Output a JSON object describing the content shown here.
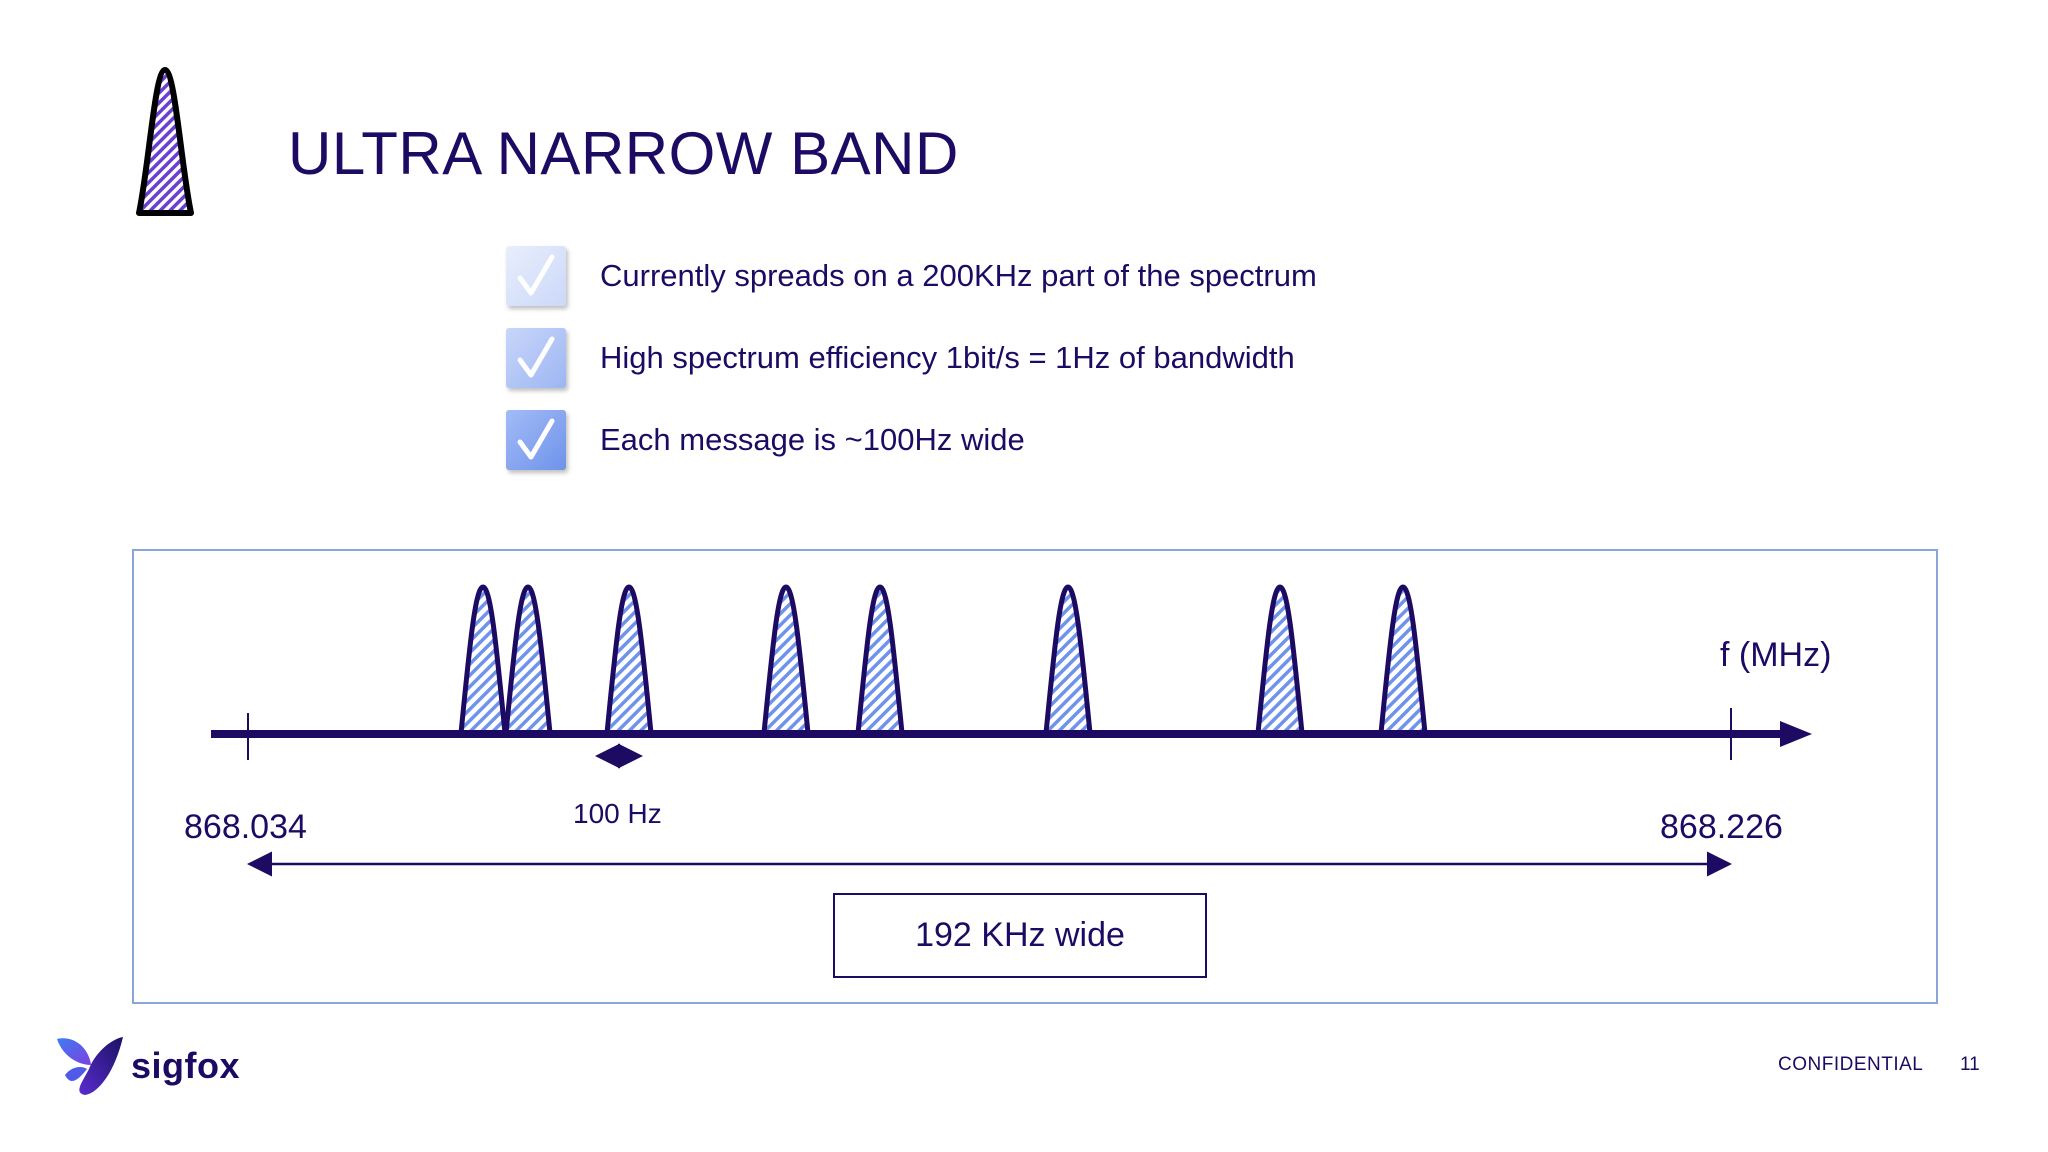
{
  "slide": {
    "title": "ULTRA NARROW BAND",
    "bullets": [
      "Currently spreads on a 200KHz part of the spectrum",
      "High spectrum efficiency 1bit/s = 1Hz of bandwidth",
      "Each message is ~100Hz wide"
    ]
  },
  "diagram": {
    "axis_label": "f (MHz)",
    "start_freq": "868.034",
    "end_freq": "868.226",
    "message_width_label": "100 Hz",
    "total_width_label": "192 KHz wide",
    "message_count": 8
  },
  "footer": {
    "brand": "sigfox",
    "confidential": "CONFIDENTIAL",
    "page_number": "11"
  },
  "colors": {
    "primary": "#1d0b63",
    "hatch": "#6f93ea",
    "frame_border": "#8aa6d8"
  }
}
